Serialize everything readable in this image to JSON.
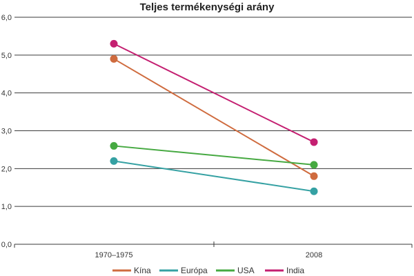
{
  "chart_data": {
    "type": "line",
    "title": "Teljes termékenységi arány",
    "xlabel": "",
    "ylabel": "",
    "categories": [
      "1970–1975",
      "2008"
    ],
    "ylim": [
      0,
      6
    ],
    "yticks": [
      "0,0",
      "1,0",
      "2,0",
      "3,0",
      "4,0",
      "5,0",
      "6,0"
    ],
    "grid": true,
    "legend_position": "bottom",
    "series": [
      {
        "name": "Kína",
        "color": "#cf6b3e",
        "values": [
          4.9,
          1.8
        ]
      },
      {
        "name": "Európa",
        "color": "#35a1a3",
        "values": [
          2.2,
          1.4
        ]
      },
      {
        "name": "USA",
        "color": "#46a941",
        "values": [
          2.6,
          2.1
        ]
      },
      {
        "name": "India",
        "color": "#c41f71",
        "values": [
          5.3,
          2.7
        ]
      }
    ]
  }
}
